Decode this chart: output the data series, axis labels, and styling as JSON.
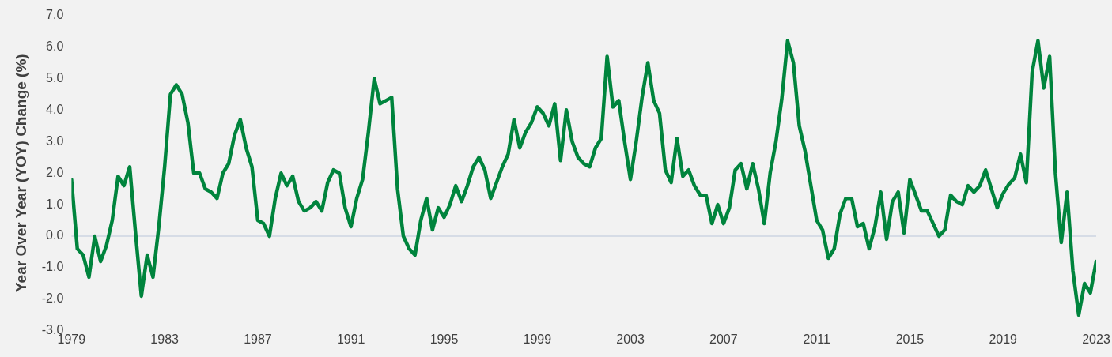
{
  "chart_data": {
    "type": "line",
    "ylabel": "Year Over Year (YOY) Change (%)",
    "x": [
      1979,
      1979.25,
      1979.5,
      1979.75,
      1980,
      1980.25,
      1980.5,
      1980.75,
      1981,
      1981.25,
      1981.5,
      1981.75,
      1982,
      1982.25,
      1982.5,
      1982.75,
      1983,
      1983.25,
      1983.5,
      1983.75,
      1984,
      1984.25,
      1984.5,
      1984.75,
      1985,
      1985.25,
      1985.5,
      1985.75,
      1986,
      1986.25,
      1986.5,
      1986.75,
      1987,
      1987.25,
      1987.5,
      1987.75,
      1988,
      1988.25,
      1988.5,
      1988.75,
      1989,
      1989.25,
      1989.5,
      1989.75,
      1990,
      1990.25,
      1990.5,
      1990.75,
      1991,
      1991.25,
      1991.5,
      1991.75,
      1992,
      1992.25,
      1992.5,
      1992.75,
      1993,
      1993.25,
      1993.5,
      1993.75,
      1994,
      1994.25,
      1994.5,
      1994.75,
      1995,
      1995.25,
      1995.5,
      1995.75,
      1996,
      1996.25,
      1996.5,
      1996.75,
      1997,
      1997.25,
      1997.5,
      1997.75,
      1998,
      1998.25,
      1998.5,
      1998.75,
      1999,
      1999.25,
      1999.5,
      1999.75,
      2000,
      2000.25,
      2000.5,
      2000.75,
      2001,
      2001.25,
      2001.5,
      2001.75,
      2002,
      2002.25,
      2002.5,
      2002.75,
      2003,
      2003.25,
      2003.5,
      2003.75,
      2004,
      2004.25,
      2004.5,
      2004.75,
      2005,
      2005.25,
      2005.5,
      2005.75,
      2006,
      2006.25,
      2006.5,
      2006.75,
      2007,
      2007.25,
      2007.5,
      2007.75,
      2008,
      2008.25,
      2008.5,
      2008.75,
      2009,
      2009.25,
      2009.5,
      2009.75,
      2010,
      2010.25,
      2010.5,
      2010.75,
      2011,
      2011.25,
      2011.5,
      2011.75,
      2012,
      2012.25,
      2012.5,
      2012.75,
      2013,
      2013.25,
      2013.5,
      2013.75,
      2014,
      2014.25,
      2014.5,
      2014.75,
      2015,
      2015.25,
      2015.5,
      2015.75,
      2016,
      2016.25,
      2016.5,
      2016.75,
      2017,
      2017.25,
      2017.5,
      2017.75,
      2018,
      2018.25,
      2018.5,
      2018.75,
      2019,
      2019.25,
      2019.5,
      2019.75,
      2020,
      2020.25,
      2020.5,
      2020.75,
      2021,
      2021.25,
      2021.5,
      2021.75,
      2022,
      2022.25,
      2022.5,
      2022.75,
      2023
    ],
    "series": [
      {
        "color": "#00843d",
        "values": [
          1.8,
          -0.4,
          -0.6,
          -1.3,
          0.0,
          -0.8,
          -0.3,
          0.5,
          1.9,
          1.6,
          2.2,
          0.1,
          -1.9,
          -0.6,
          -1.3,
          0.3,
          2.2,
          4.5,
          4.8,
          4.5,
          3.6,
          2.0,
          2.0,
          1.5,
          1.4,
          1.2,
          2.0,
          2.3,
          3.2,
          3.7,
          2.8,
          2.2,
          0.5,
          0.4,
          0.0,
          1.2,
          2.0,
          1.6,
          1.9,
          1.1,
          0.8,
          0.9,
          1.1,
          0.8,
          1.7,
          2.1,
          2.0,
          0.9,
          0.3,
          1.2,
          1.8,
          3.3,
          5.0,
          4.2,
          4.3,
          4.4,
          1.5,
          0.0,
          -0.4,
          -0.6,
          0.5,
          1.2,
          0.2,
          0.9,
          0.6,
          1.0,
          1.6,
          1.1,
          1.6,
          2.2,
          2.5,
          2.1,
          1.2,
          1.7,
          2.2,
          2.6,
          3.7,
          2.8,
          3.3,
          3.6,
          4.1,
          3.9,
          3.5,
          4.2,
          2.4,
          4.0,
          3.0,
          2.5,
          2.3,
          2.2,
          2.8,
          3.1,
          5.7,
          4.1,
          4.3,
          3.0,
          1.8,
          3.0,
          4.4,
          5.5,
          4.3,
          3.9,
          2.1,
          1.7,
          3.1,
          1.9,
          2.1,
          1.6,
          1.3,
          1.3,
          0.4,
          1.0,
          0.4,
          0.9,
          2.1,
          2.3,
          1.5,
          2.3,
          1.5,
          0.4,
          2.0,
          3.0,
          4.35,
          6.2,
          5.5,
          3.5,
          2.7,
          1.6,
          0.5,
          0.2,
          -0.7,
          -0.4,
          0.7,
          1.2,
          1.2,
          0.3,
          0.4,
          -0.4,
          0.3,
          1.4,
          -0.1,
          1.1,
          1.4,
          0.1,
          1.8,
          1.3,
          0.8,
          0.8,
          0.4,
          0.0,
          0.2,
          1.3,
          1.1,
          1.0,
          1.6,
          1.4,
          1.6,
          2.1,
          1.5,
          0.9,
          1.35,
          1.65,
          1.85,
          2.6,
          1.7,
          5.2,
          6.2,
          4.7,
          5.7,
          2.0,
          -0.2,
          1.4,
          -1.1,
          -2.5,
          -1.5,
          -1.8,
          -0.8
        ]
      }
    ],
    "xlim": [
      1979,
      2023
    ],
    "xticks": [
      1979,
      1983,
      1987,
      1991,
      1995,
      1999,
      2003,
      2007,
      2011,
      2015,
      2019,
      2023
    ],
    "ylim": [
      -3,
      7
    ],
    "yticks": [
      {
        "value": -3,
        "label": "-3.0"
      },
      {
        "value": -2,
        "label": "-2.0"
      },
      {
        "value": -1,
        "label": "-1.0"
      },
      {
        "value": 0,
        "label": "0.0"
      },
      {
        "value": 1,
        "label": "1.0"
      },
      {
        "value": 2,
        "label": "2.0"
      },
      {
        "value": 3,
        "label": "3.0"
      },
      {
        "value": 4,
        "label": "4.0"
      },
      {
        "value": 5,
        "label": "5.0"
      },
      {
        "value": 6,
        "label": "6.0"
      },
      {
        "value": 7,
        "label": "7.0"
      }
    ],
    "ref_lines": [
      {
        "axis": "y",
        "value": 0,
        "color": "#d6dce6"
      }
    ],
    "grid": false,
    "legend": false,
    "marker": "none",
    "line_style": "solid"
  }
}
